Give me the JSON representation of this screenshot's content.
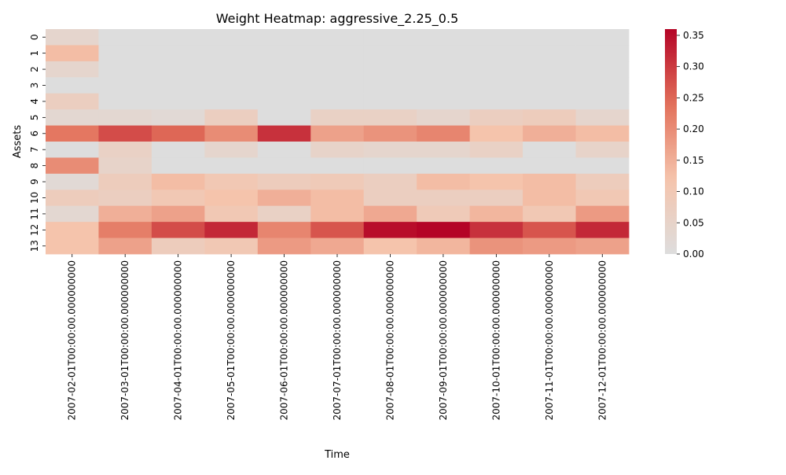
{
  "chart_data": {
    "type": "heatmap",
    "title": "Weight Heatmap: aggressive_2.25_0.5",
    "xlabel": "Time",
    "ylabel": "Assets",
    "x": [
      "2007-02-01T00:00:00.000000000",
      "2007-03-01T00:00:00.000000000",
      "2007-04-01T00:00:00.000000000",
      "2007-05-01T00:00:00.000000000",
      "2007-06-01T00:00:00.000000000",
      "2007-07-01T00:00:00.000000000",
      "2007-08-01T00:00:00.000000000",
      "2007-09-01T00:00:00.000000000",
      "2007-10-01T00:00:00.000000000",
      "2007-11-01T00:00:00.000000000",
      "2007-12-01T00:00:00.000000000"
    ],
    "y": [
      "0",
      "1",
      "2",
      "3",
      "4",
      "5",
      "6",
      "7",
      "8",
      "9",
      "10",
      "11",
      "12",
      "13"
    ],
    "values": [
      [
        0.04,
        0.0,
        0.0,
        0.0,
        0.0,
        0.0,
        0.0,
        0.0,
        0.0,
        0.0,
        0.0
      ],
      [
        0.13,
        0.0,
        0.0,
        0.0,
        0.0,
        0.0,
        0.0,
        0.0,
        0.0,
        0.0,
        0.0
      ],
      [
        0.04,
        0.0,
        0.0,
        0.0,
        0.0,
        0.0,
        0.0,
        0.0,
        0.0,
        0.0,
        0.0
      ],
      [
        0.0,
        0.0,
        0.0,
        0.0,
        0.0,
        0.0,
        0.0,
        0.0,
        0.0,
        0.0,
        0.0
      ],
      [
        0.07,
        0.0,
        0.0,
        0.0,
        0.0,
        0.0,
        0.0,
        0.0,
        0.0,
        0.0,
        0.0
      ],
      [
        0.03,
        0.03,
        0.02,
        0.07,
        0.0,
        0.06,
        0.06,
        0.04,
        0.07,
        0.08,
        0.04
      ],
      [
        0.23,
        0.28,
        0.25,
        0.2,
        0.31,
        0.17,
        0.19,
        0.21,
        0.12,
        0.15,
        0.13
      ],
      [
        0.0,
        0.06,
        0.0,
        0.04,
        0.0,
        0.05,
        0.04,
        0.04,
        0.06,
        0.0,
        0.05
      ],
      [
        0.2,
        0.05,
        0.0,
        0.0,
        0.0,
        0.0,
        0.0,
        0.0,
        0.0,
        0.0,
        0.0
      ],
      [
        0.02,
        0.08,
        0.13,
        0.1,
        0.08,
        0.09,
        0.07,
        0.13,
        0.12,
        0.13,
        0.08
      ],
      [
        0.08,
        0.07,
        0.1,
        0.12,
        0.15,
        0.13,
        0.07,
        0.07,
        0.07,
        0.13,
        0.1
      ],
      [
        0.03,
        0.15,
        0.17,
        0.1,
        0.06,
        0.13,
        0.16,
        0.09,
        0.14,
        0.1,
        0.18
      ],
      [
        0.12,
        0.22,
        0.28,
        0.32,
        0.21,
        0.27,
        0.35,
        0.36,
        0.31,
        0.27,
        0.32
      ],
      [
        0.12,
        0.17,
        0.08,
        0.1,
        0.18,
        0.16,
        0.12,
        0.14,
        0.19,
        0.18,
        0.17
      ]
    ],
    "colorbar": {
      "min": 0.0,
      "max": 0.36,
      "ticks": [
        "0.00",
        "0.05",
        "0.10",
        "0.15",
        "0.20",
        "0.25",
        "0.30",
        "0.35"
      ],
      "tick_values": [
        0.0,
        0.05,
        0.1,
        0.15,
        0.2,
        0.25,
        0.3,
        0.35
      ]
    },
    "colormap": {
      "name": "coolwarm-center-zero",
      "stops": [
        {
          "v": 0.0,
          "color": "#dddddd"
        },
        {
          "v": 0.12,
          "color": "#f5c4ac"
        },
        {
          "v": 0.24,
          "color": "#e2705a"
        },
        {
          "v": 0.36,
          "color": "#b40426"
        }
      ]
    },
    "grid": false,
    "legend": "colorbar-right"
  }
}
